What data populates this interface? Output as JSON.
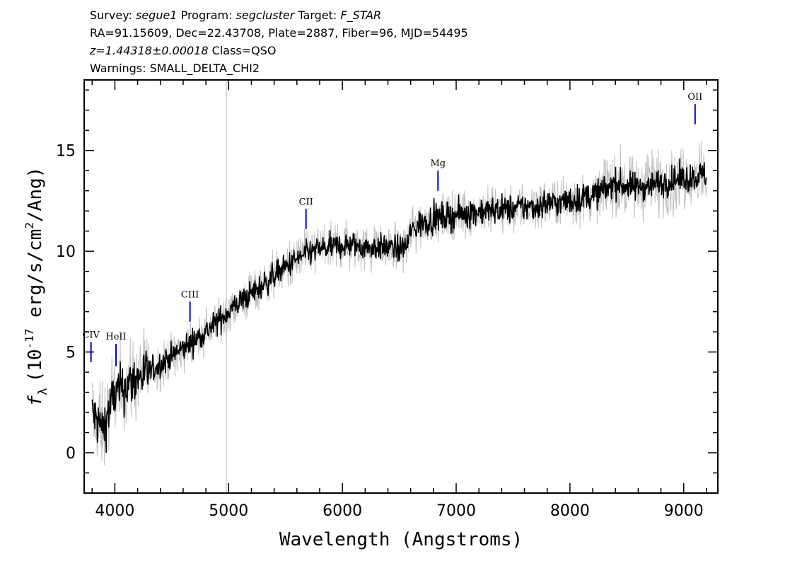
{
  "header": {
    "line1": {
      "survey_label": "Survey:",
      "survey_value": "segue1",
      "program_label": "Program:",
      "program_value": "segcluster",
      "target_label": "Target:",
      "target_value": "F_STAR"
    },
    "line2": "RA=91.15609, Dec=22.43708, Plate=2887, Fiber=96, MJD=54495",
    "line3": {
      "redshift": "z=1.44318±0.00018",
      "class": "Class=QSO"
    },
    "line4": "Warnings: SMALL_DELTA_CHI2"
  },
  "chart_data": {
    "type": "line",
    "xlabel": "Wavelength (Angstroms)",
    "ylabel_prefix": "f",
    "ylabel_sub": "λ",
    "ylabel_unit_a": "(10",
    "ylabel_exp": "-17",
    "ylabel_unit_b": " erg/s/cm",
    "ylabel_exp2": "2",
    "ylabel_unit_c": "/Ang)",
    "xlim": [
      3730,
      9300
    ],
    "ylim": [
      -2,
      18.5
    ],
    "x_ticks": [
      "4000",
      "5000",
      "6000",
      "7000",
      "8000",
      "9000"
    ],
    "y_ticks": [
      "0",
      "5",
      "10",
      "15"
    ],
    "vertical_marker_x": 4980,
    "series": [
      {
        "role": "flux",
        "color": "#000000",
        "x": [
          3800,
          3850,
          3900,
          3950,
          4000,
          4100,
          4200,
          4300,
          4400,
          4500,
          4600,
          4700,
          4800,
          4900,
          5000,
          5100,
          5200,
          5300,
          5400,
          5500,
          5600,
          5700,
          5800,
          5900,
          6000,
          6100,
          6200,
          6300,
          6400,
          6500,
          6570,
          6600,
          6700,
          6800,
          6900,
          7000,
          7100,
          7200,
          7300,
          7400,
          7500,
          7600,
          7700,
          7800,
          7900,
          8000,
          8100,
          8200,
          8300,
          8400,
          8500,
          8600,
          8700,
          8800,
          8900,
          9000,
          9100,
          9200
        ],
        "y": [
          2.0,
          1.5,
          1.2,
          2.2,
          2.9,
          3.3,
          3.7,
          4.0,
          4.4,
          4.8,
          5.2,
          5.6,
          6.0,
          6.5,
          7.0,
          7.5,
          7.9,
          8.3,
          8.8,
          9.2,
          9.6,
          9.9,
          10.1,
          10.2,
          10.3,
          10.3,
          10.2,
          10.2,
          10.2,
          10.1,
          10.3,
          11.0,
          11.4,
          11.6,
          11.7,
          11.8,
          11.9,
          12.0,
          12.0,
          12.1,
          12.1,
          12.2,
          12.2,
          12.4,
          12.4,
          12.5,
          12.6,
          12.8,
          13.0,
          13.4,
          13.2,
          13.2,
          13.3,
          13.4,
          13.5,
          13.6,
          13.7,
          13.8
        ]
      },
      {
        "role": "error",
        "color": "#c0c0c0"
      }
    ],
    "annotations": [
      {
        "label": "CIV",
        "x": 3790,
        "y_bottom": 4.5,
        "y_top": 5.5
      },
      {
        "label": "HeII",
        "x": 4010,
        "y_bottom": 4.3,
        "y_top": 5.4
      },
      {
        "label": "CIII",
        "x": 4660,
        "y_bottom": 6.5,
        "y_top": 7.5
      },
      {
        "label": "CII",
        "x": 5680,
        "y_bottom": 11.1,
        "y_top": 12.1
      },
      {
        "label": "Mg",
        "x": 6840,
        "y_bottom": 13.0,
        "y_top": 14.0
      },
      {
        "label": "OII",
        "x": 9100,
        "y_bottom": 16.3,
        "y_top": 17.3
      }
    ]
  },
  "colors": {
    "line_marker": "#0000cc",
    "error_fill": "#c0c0c0",
    "flux": "#000000",
    "vline": "#c8c8c8"
  }
}
